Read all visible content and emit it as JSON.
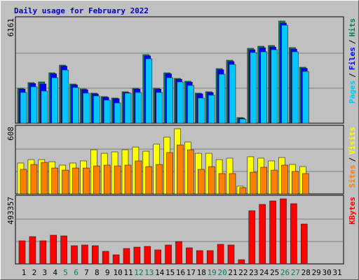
{
  "chart_data": [
    {
      "type": "bar",
      "title": "Daily usage for February 2022",
      "legend_separator": "/",
      "ylim": [
        0,
        6161
      ],
      "yticks": [
        6161
      ],
      "series": [
        {
          "name": "Hits",
          "color": "#00805c",
          "values": [
            2054,
            2382,
            2423,
            2957,
            3409,
            2300,
            2013,
            1766,
            1561,
            1479,
            1848,
            2054,
            4025,
            2054,
            2957,
            2629,
            2464,
            1766,
            1848,
            3204,
            3697,
            329,
            4395,
            4518,
            4559,
            5997,
            4436,
            3286,
            null,
            null,
            null
          ]
        },
        {
          "name": "Files",
          "color": "#0000ff",
          "values": [
            2000,
            2330,
            2300,
            2900,
            3350,
            2250,
            1960,
            1720,
            1520,
            1440,
            1800,
            2000,
            3950,
            2000,
            2900,
            2580,
            2410,
            1720,
            1800,
            3140,
            3620,
            300,
            4310,
            4430,
            4470,
            5880,
            4350,
            3220,
            null,
            null,
            null
          ]
        },
        {
          "name": "Pages",
          "color": "#00c8ff",
          "values": [
            1807,
            2136,
            1889,
            2670,
            3122,
            2095,
            1766,
            1602,
            1355,
            1191,
            1766,
            1807,
            3779,
            1807,
            2670,
            2423,
            2218,
            1479,
            1643,
            2875,
            3450,
            246,
            4148,
            4190,
            4313,
            5750,
            4190,
            3039,
            null,
            null,
            null
          ]
        }
      ]
    },
    {
      "type": "bar",
      "ylim": [
        0,
        608
      ],
      "yticks": [
        608
      ],
      "series": [
        {
          "name": "Visits",
          "color": "#ffff00",
          "values": [
            279,
            310,
            310,
            291,
            260,
            279,
            298,
            399,
            367,
            380,
            399,
            424,
            386,
            450,
            513,
            589,
            469,
            367,
            367,
            310,
            323,
            70,
            336,
            323,
            298,
            329,
            266,
            247,
            null,
            null,
            null
          ]
        },
        {
          "name": "Sites",
          "color": "#ff8000",
          "values": [
            222,
            266,
            285,
            234,
            215,
            234,
            234,
            253,
            260,
            253,
            260,
            298,
            247,
            266,
            374,
            443,
            399,
            222,
            247,
            184,
            184,
            57,
            196,
            241,
            215,
            260,
            203,
            184,
            null,
            null,
            null
          ]
        }
      ]
    },
    {
      "type": "bar",
      "ylim": [
        0,
        493357
      ],
      "yticks": [
        493357
      ],
      "categories": [
        "1",
        "2",
        "3",
        "4",
        "5",
        "6",
        "7",
        "8",
        "9",
        "10",
        "11",
        "12",
        "13",
        "14",
        "15",
        "16",
        "17",
        "18",
        "19",
        "20",
        "21",
        "22",
        "23",
        "24",
        "25",
        "26",
        "27",
        "28",
        "29",
        "30",
        "31"
      ],
      "category_colors": [
        "#000000",
        "#000000",
        "#000000",
        "#000000",
        "#00805c",
        "#00805c",
        "#000000",
        "#000000",
        "#000000",
        "#000000",
        "#000000",
        "#00805c",
        "#00805c",
        "#000000",
        "#000000",
        "#000000",
        "#000000",
        "#000000",
        "#00805c",
        "#00805c",
        "#000000",
        "#000000",
        "#000000",
        "#000000",
        "#000000",
        "#00805c",
        "#00805c",
        "#000000",
        "#000000",
        "#000000",
        "#000000"
      ],
      "series": [
        {
          "name": "KBytes",
          "color": "#ff0000",
          "values": [
            169600,
            200400,
            169600,
            210700,
            205600,
            133600,
            138800,
            133600,
            92500,
            66800,
            113100,
            123300,
            128500,
            102800,
            138800,
            164400,
            118200,
            97600,
            97600,
            143900,
            138800,
            30800,
            390600,
            436800,
            462500,
            477900,
            442000,
            292900,
            null,
            null,
            null
          ]
        }
      ]
    }
  ]
}
